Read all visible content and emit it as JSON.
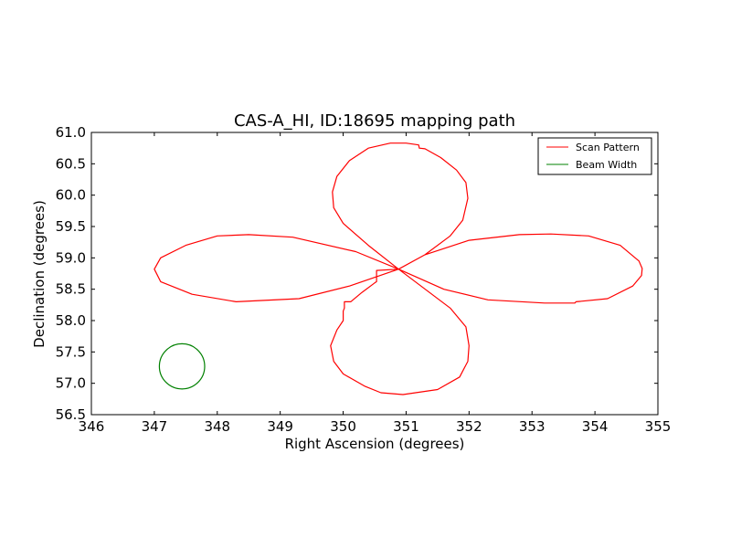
{
  "chart_data": {
    "type": "line",
    "title": "CAS-A_HI, ID:18695 mapping path",
    "xlabel": "Right Ascension (degrees)",
    "ylabel": "Declination (degrees)",
    "xlim": [
      346,
      355
    ],
    "ylim": [
      56.5,
      61.0
    ],
    "xticks": [
      "346",
      "347",
      "348",
      "349",
      "350",
      "351",
      "352",
      "353",
      "354",
      "355"
    ],
    "yticks": [
      "56.5",
      "57.0",
      "57.5",
      "58.0",
      "58.5",
      "59.0",
      "59.5",
      "60.0",
      "60.5",
      "61.0"
    ],
    "grid": false,
    "legend": {
      "placement": "top-right"
    },
    "series": [
      {
        "name": "Scan Pattern",
        "color": "#ff0000",
        "x": [
          350.88,
          351.3,
          352.0,
          352.8,
          353.3,
          353.9,
          354.4,
          354.7,
          354.75,
          354.74,
          354.6,
          354.2,
          353.7,
          353.68,
          353.2,
          352.3,
          351.6,
          350.88,
          351.7,
          351.95,
          352.0,
          351.98,
          351.85,
          351.5,
          350.95,
          350.6,
          350.35,
          350.0,
          349.85,
          349.8,
          349.9,
          350.0,
          350.0,
          350.02,
          350.02,
          350.12,
          350.3,
          350.5,
          350.53,
          350.53,
          350.88,
          350.2,
          349.2,
          348.5,
          348.0,
          347.5,
          347.1,
          347.0,
          347.1,
          347.6,
          348.3,
          349.3,
          350.1,
          350.88,
          350.4,
          350.0,
          349.85,
          349.83,
          349.9,
          350.1,
          350.4,
          350.75,
          351.0,
          351.2,
          351.21,
          351.3,
          351.55,
          351.8,
          351.95,
          351.98,
          351.9,
          351.7,
          351.3,
          350.88
        ],
        "y": [
          58.82,
          59.05,
          59.28,
          59.37,
          59.38,
          59.35,
          59.2,
          58.95,
          58.83,
          58.72,
          58.55,
          58.35,
          58.3,
          58.28,
          58.28,
          58.33,
          58.5,
          58.82,
          58.2,
          57.9,
          57.6,
          57.35,
          57.1,
          56.9,
          56.82,
          56.85,
          56.95,
          57.15,
          57.35,
          57.6,
          57.85,
          58.0,
          58.15,
          58.2,
          58.3,
          58.3,
          58.45,
          58.6,
          58.62,
          58.8,
          58.82,
          59.1,
          59.33,
          59.37,
          59.35,
          59.2,
          59.0,
          58.82,
          58.62,
          58.42,
          58.3,
          58.35,
          58.55,
          58.82,
          59.2,
          59.55,
          59.8,
          60.05,
          60.3,
          60.55,
          60.75,
          60.83,
          60.83,
          60.8,
          60.75,
          60.74,
          60.6,
          60.4,
          60.2,
          59.95,
          59.6,
          59.35,
          59.05,
          58.82
        ]
      },
      {
        "name": "Beam Width",
        "color": "#008000",
        "center": [
          347.44,
          57.27
        ],
        "radius": 0.36
      }
    ]
  }
}
